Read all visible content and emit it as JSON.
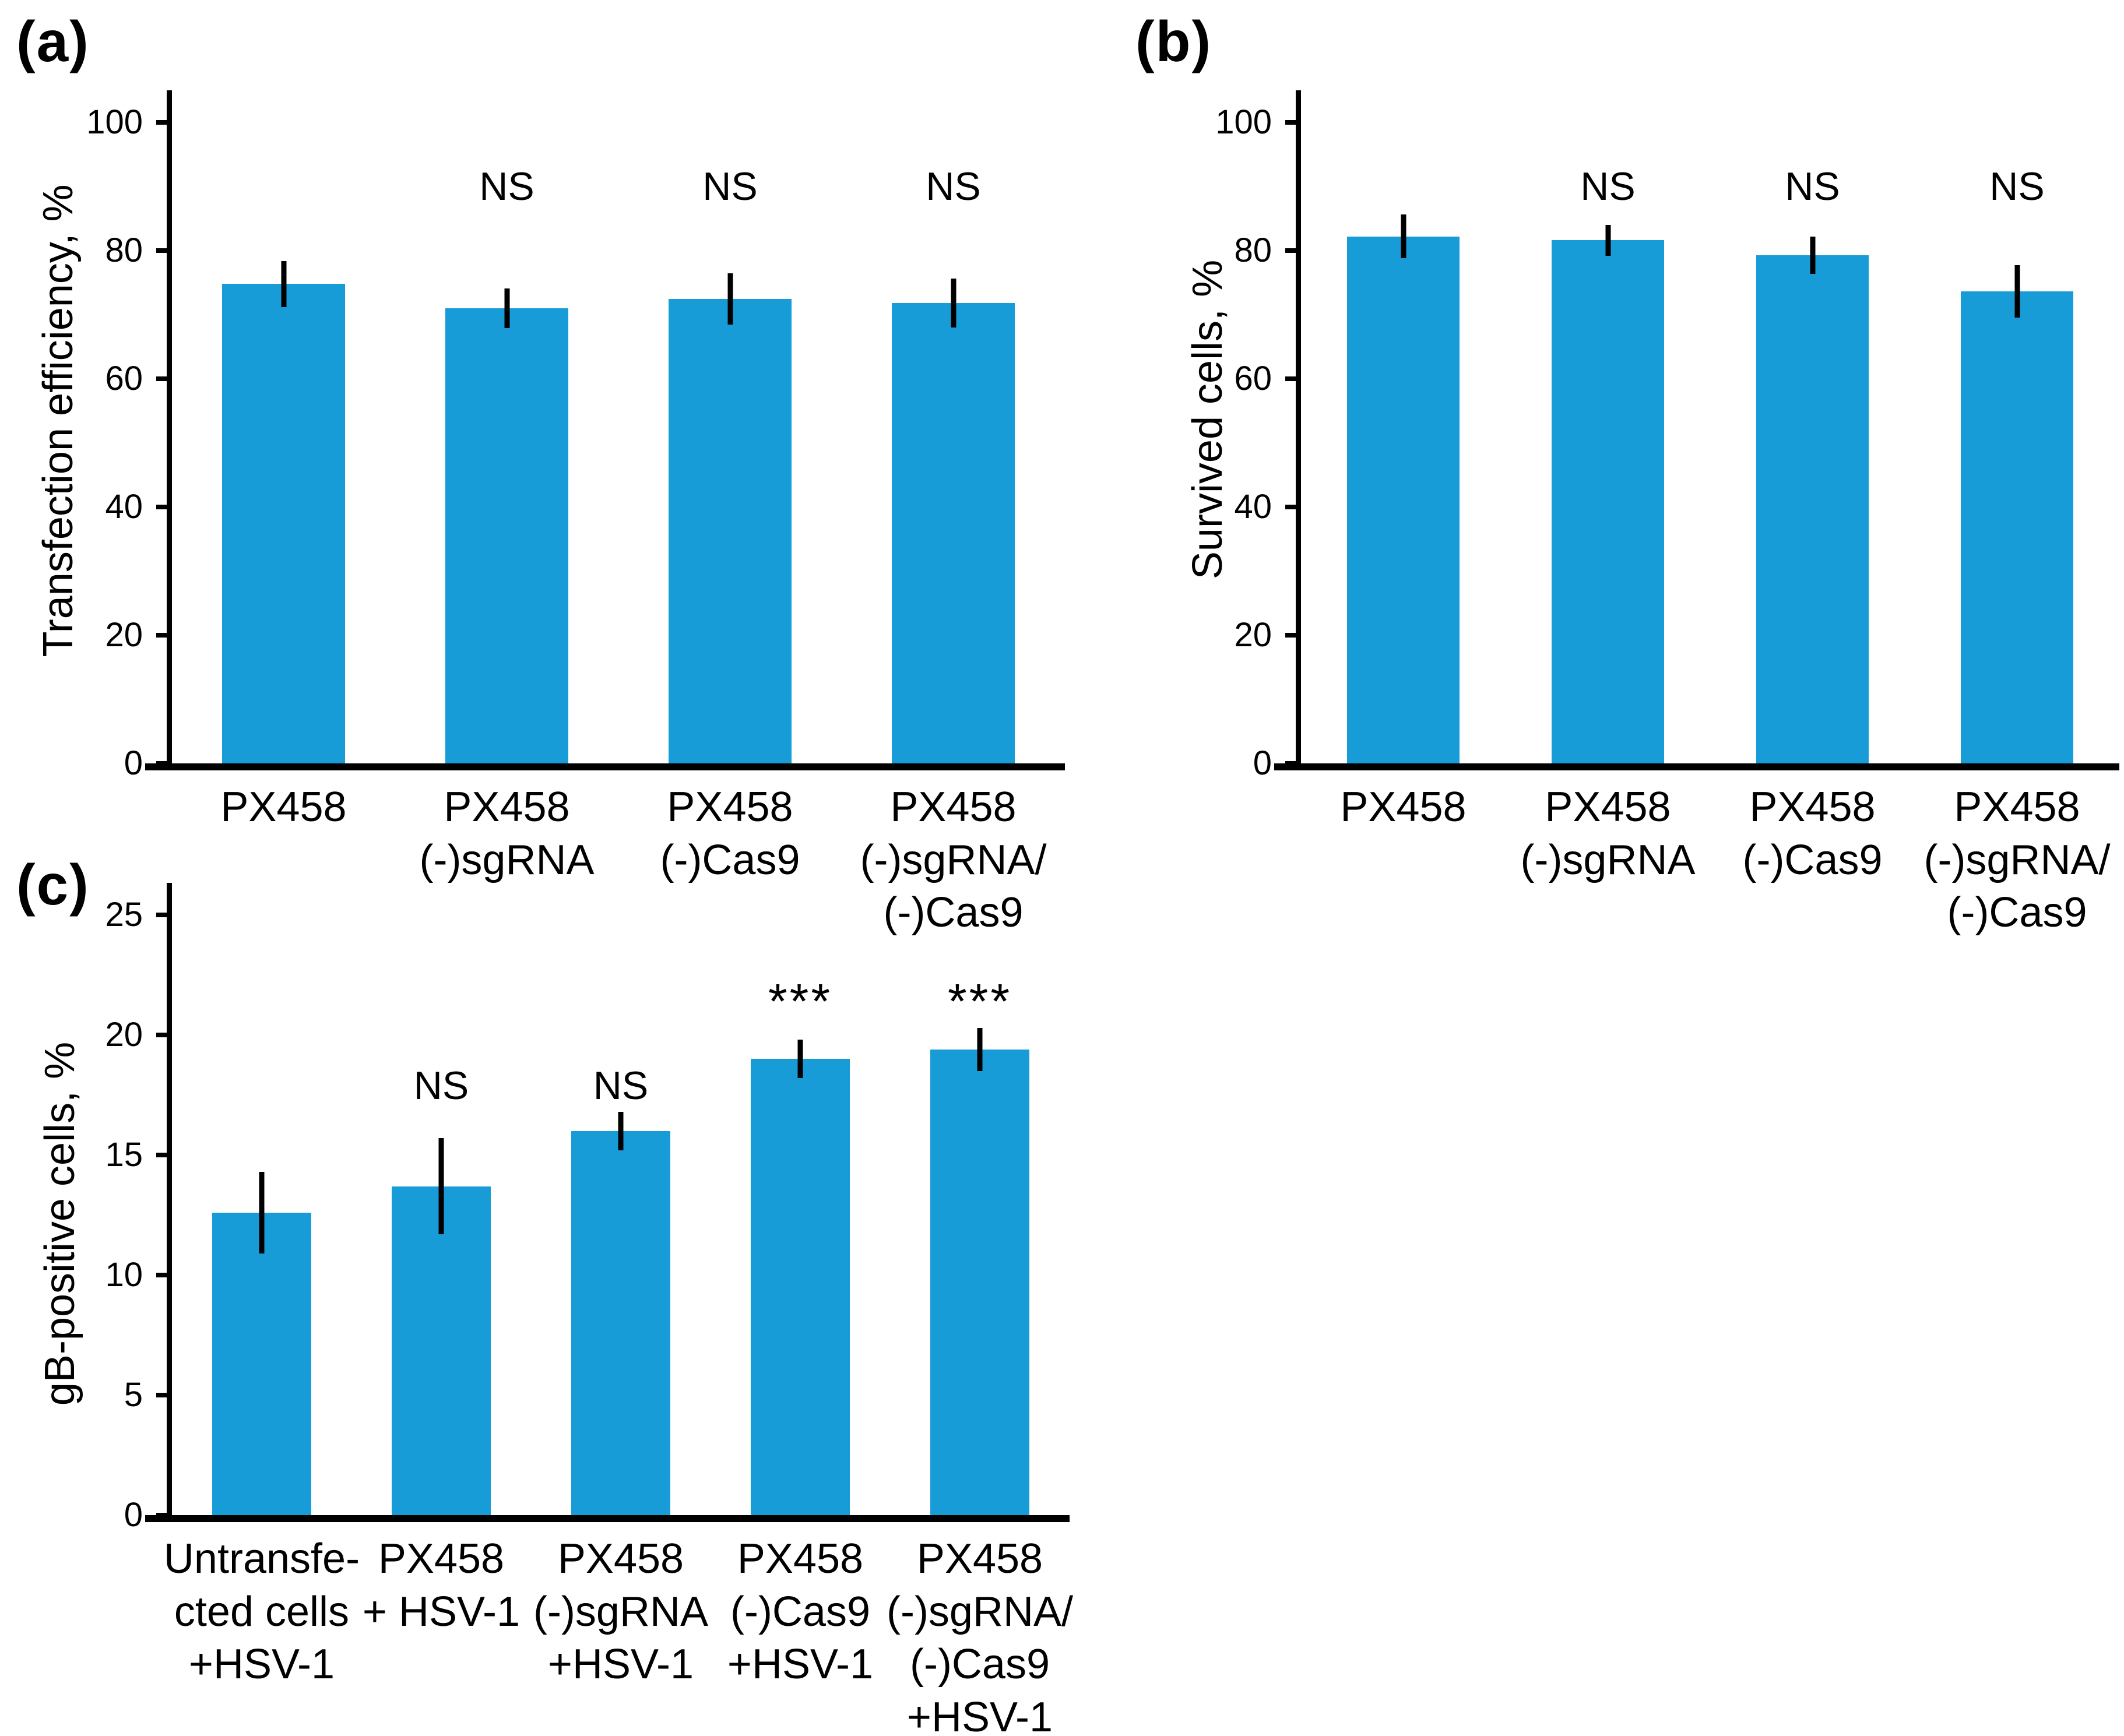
{
  "bar_color": "#189cd8",
  "panels": [
    {
      "label": "(a)",
      "chart_data": {
        "type": "bar",
        "ylabel": "Transfection efficiency, %",
        "xlabel": "",
        "ylim": [
          0,
          100
        ],
        "yticks": [
          0,
          20,
          40,
          60,
          80,
          100
        ],
        "grid": false,
        "legend": "none",
        "bar_color": "#189cd8",
        "categories": [
          "PX458",
          "PX458\n(-)sgRNA",
          "PX458\n(-)Cas9",
          "PX458\n(-)sgRNA/\n(-)Cas9"
        ],
        "values": [
          74.8,
          71.0,
          72.5,
          71.8
        ],
        "errors": [
          3.6,
          3.1,
          4.0,
          3.8
        ],
        "significance": [
          "",
          "NS",
          "NS",
          "NS"
        ],
        "sig_y": {
          "NS": 90,
          "***": 95
        }
      }
    },
    {
      "label": "(b)",
      "chart_data": {
        "type": "bar",
        "ylabel": "Survived cells, %",
        "xlabel": "",
        "ylim": [
          0,
          100
        ],
        "yticks": [
          0,
          20,
          40,
          60,
          80,
          100
        ],
        "grid": false,
        "legend": "none",
        "bar_color": "#189cd8",
        "categories": [
          "PX458",
          "PX458\n(-)sgRNA",
          "PX458\n(-)Cas9",
          "PX458\n(-)sgRNA/\n(-)Cas9"
        ],
        "values": [
          82.2,
          81.6,
          79.3,
          73.6
        ],
        "errors": [
          3.4,
          2.4,
          2.9,
          4.1
        ],
        "significance": [
          "",
          "NS",
          "NS",
          "NS"
        ],
        "sig_y": {
          "NS": 90,
          "***": 95
        }
      }
    },
    {
      "label": "(c)",
      "chart_data": {
        "type": "bar",
        "ylabel": "gB-positive cells, %",
        "xlabel": "",
        "ylim": [
          0,
          25
        ],
        "yticks": [
          0,
          5,
          10,
          15,
          20,
          25
        ],
        "grid": false,
        "legend": "none",
        "bar_color": "#189cd8",
        "categories": [
          "Untransfe-\ncted cells\n+HSV-1",
          "PX458\n+ HSV-1",
          "PX458\n(-)sgRNA\n+HSV-1",
          "PX458\n(-)Cas9\n+HSV-1",
          "PX458\n(-)sgRNA/\n(-)Cas9\n+HSV-1"
        ],
        "values": [
          12.6,
          13.7,
          16.0,
          19.0,
          19.4
        ],
        "errors": [
          1.7,
          2.0,
          0.8,
          0.8,
          0.9
        ],
        "significance": [
          "",
          "NS",
          "NS",
          "***",
          "***"
        ],
        "sig_y": {
          "NS": 17.9,
          "***": 21.4
        }
      }
    }
  ]
}
